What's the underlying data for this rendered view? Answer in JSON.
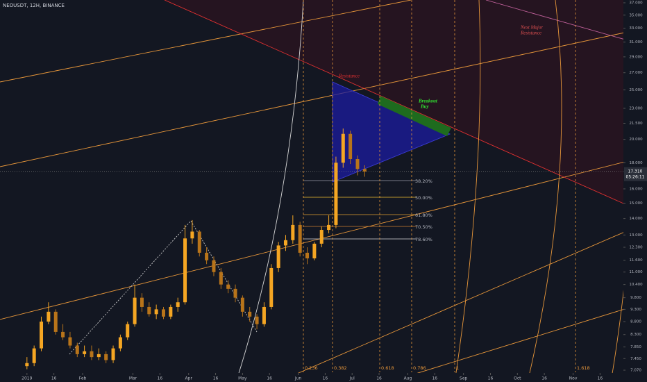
{
  "chart_data": {
    "type": "candlestick",
    "title": "NEOUSDT, 12H, BINANCE",
    "log_scale": true,
    "grid": false,
    "up_color": "#f5a623",
    "down_color": "#b8741a",
    "xlim": [
      -15,
      332
    ],
    "xticks": [
      {
        "value": 0,
        "label": "2019"
      },
      {
        "value": 15,
        "label": "16"
      },
      {
        "value": 31,
        "label": "Feb"
      },
      {
        "value": 59,
        "label": "Mar"
      },
      {
        "value": 74,
        "label": "16"
      },
      {
        "value": 90,
        "label": "Apr"
      },
      {
        "value": 105,
        "label": "16"
      },
      {
        "value": 120,
        "label": "May"
      },
      {
        "value": 135,
        "label": "16"
      },
      {
        "value": 151,
        "label": "Jun"
      },
      {
        "value": 166,
        "label": "16"
      },
      {
        "value": 181,
        "label": "Jul"
      },
      {
        "value": 196,
        "label": "16"
      },
      {
        "value": 212,
        "label": "Aug"
      },
      {
        "value": 227,
        "label": "16"
      },
      {
        "value": 243,
        "label": "Sep"
      },
      {
        "value": 258,
        "label": "16"
      },
      {
        "value": 273,
        "label": "Oct"
      },
      {
        "value": 288,
        "label": "16"
      },
      {
        "value": 304,
        "label": "Nov"
      },
      {
        "value": 319,
        "label": "16"
      }
    ],
    "ylim": [
      7.07,
      37
    ],
    "yticks": [
      {
        "value": 7.07,
        "label": "7.070"
      },
      {
        "value": 7.45,
        "label": "7.450"
      },
      {
        "value": 7.85,
        "label": "7.850"
      },
      {
        "value": 8.3,
        "label": "8.300"
      },
      {
        "value": 8.8,
        "label": "8.800"
      },
      {
        "value": 9.3,
        "label": "9.300"
      },
      {
        "value": 9.8,
        "label": "9.800"
      },
      {
        "value": 10.4,
        "label": "10.400"
      },
      {
        "value": 11,
        "label": "11.000"
      },
      {
        "value": 11.6,
        "label": "11.600"
      },
      {
        "value": 12.3,
        "label": "12.300"
      },
      {
        "value": 13,
        "label": "13.000"
      },
      {
        "value": 14,
        "label": "14.000"
      },
      {
        "value": 15,
        "label": "15.000"
      },
      {
        "value": 16,
        "label": "16.000"
      },
      {
        "value": 18,
        "label": "18.000"
      },
      {
        "value": 20,
        "label": "20.000"
      },
      {
        "value": 21.5,
        "label": "21.500"
      },
      {
        "value": 23,
        "label": "23.000"
      },
      {
        "value": 25,
        "label": "25.000"
      },
      {
        "value": 27,
        "label": "27.000"
      },
      {
        "value": 29,
        "label": "29.000"
      },
      {
        "value": 31,
        "label": "31.000"
      },
      {
        "value": 33,
        "label": "33.000"
      },
      {
        "value": 35,
        "label": "35.000"
      },
      {
        "value": 37,
        "label": "37.000"
      }
    ],
    "last_price": {
      "value": 17.31,
      "label": "17.310"
    },
    "countdown": "05:26:11",
    "x": [
      0,
      4,
      8,
      12,
      16,
      20,
      24,
      28,
      32,
      36,
      40,
      44,
      48,
      52,
      56,
      60,
      64,
      68,
      72,
      76,
      80,
      84,
      88,
      92,
      96,
      100,
      104,
      108,
      112,
      116,
      120,
      124,
      128,
      132,
      136,
      140,
      144,
      148,
      152,
      156,
      160,
      164,
      168,
      172,
      176,
      180,
      184,
      188
    ],
    "open": [
      7.2,
      7.3,
      7.8,
      8.8,
      9.2,
      8.4,
      8.2,
      7.9,
      7.6,
      7.7,
      7.5,
      7.6,
      7.4,
      7.8,
      8.2,
      8.7,
      9.8,
      9.4,
      9.1,
      9.3,
      9.0,
      9.4,
      9.6,
      12.8,
      13.2,
      12.0,
      11.6,
      11.0,
      10.4,
      10.2,
      9.8,
      9.2,
      9.0,
      8.7,
      9.4,
      11.2,
      12.4,
      12.7,
      13.6,
      12.0,
      11.7,
      12.5,
      13.3,
      13.6,
      18.0,
      20.5,
      18.3,
      17.5
    ],
    "high": [
      7.5,
      7.9,
      9.0,
      9.6,
      9.3,
      8.7,
      8.4,
      8.0,
      7.9,
      7.9,
      7.8,
      7.7,
      7.9,
      8.3,
      8.8,
      10.4,
      10.0,
      9.6,
      9.5,
      9.4,
      9.5,
      9.8,
      13.6,
      13.9,
      13.3,
      12.3,
      11.8,
      11.2,
      10.6,
      10.4,
      9.9,
      9.4,
      9.1,
      9.6,
      11.4,
      12.6,
      13.0,
      14.2,
      13.8,
      12.3,
      12.6,
      13.5,
      14.2,
      18.5,
      21.0,
      20.8,
      18.6,
      17.8
    ],
    "low": [
      7.1,
      7.2,
      7.7,
      8.7,
      8.3,
      8.1,
      7.8,
      7.5,
      7.5,
      7.4,
      7.4,
      7.3,
      7.3,
      7.7,
      8.1,
      8.6,
      9.2,
      9.0,
      8.9,
      8.9,
      8.9,
      9.2,
      9.5,
      12.5,
      11.8,
      11.4,
      10.8,
      10.2,
      10.0,
      9.6,
      9.0,
      8.8,
      8.5,
      8.6,
      9.3,
      11.0,
      12.1,
      12.5,
      11.8,
      11.4,
      11.6,
      12.3,
      13.1,
      13.4,
      17.6,
      17.9,
      17.0,
      16.9
    ],
    "close": [
      7.3,
      7.8,
      8.8,
      9.2,
      8.4,
      8.2,
      7.9,
      7.6,
      7.7,
      7.5,
      7.6,
      7.4,
      7.8,
      8.2,
      8.7,
      9.8,
      9.4,
      9.1,
      9.3,
      9.0,
      9.4,
      9.6,
      12.8,
      13.2,
      12.0,
      11.6,
      11.0,
      10.4,
      10.2,
      9.8,
      9.2,
      9.0,
      8.7,
      9.4,
      11.2,
      12.4,
      12.7,
      13.6,
      12.0,
      11.7,
      12.5,
      13.3,
      13.6,
      18.0,
      20.5,
      18.3,
      17.5,
      17.3
    ],
    "annotations": {
      "resistance": "Resistance",
      "next_major_resistance": [
        "Next Major",
        "Resistance"
      ],
      "breakout_buy": [
        "Breakout",
        "Buy"
      ]
    },
    "fib_levels": [
      "38.20%",
      "50.00%",
      "61.80%",
      "70.50%",
      "78.60%"
    ],
    "fib_time": [
      "0.236",
      "0.382",
      "0.618",
      "0.786",
      "1",
      "1.618"
    ]
  }
}
